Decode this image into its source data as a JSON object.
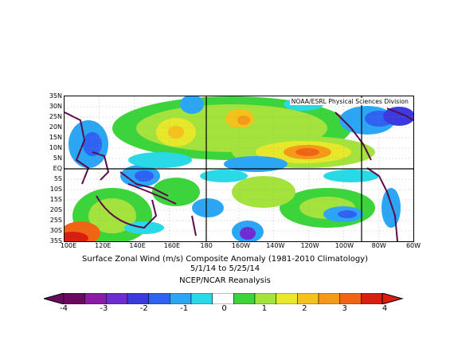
{
  "map": {
    "credit": "NOAA/ESRL Physical Sciences Division",
    "lat_labels": [
      "35N",
      "30N",
      "25N",
      "20N",
      "15N",
      "10N",
      "5N",
      "EQ",
      "5S",
      "10S",
      "15S",
      "20S",
      "25S",
      "30S",
      "35S"
    ],
    "lon_labels": [
      "100E",
      "120E",
      "140E",
      "160E",
      "180",
      "160W",
      "140W",
      "120W",
      "100W",
      "80W",
      "60W"
    ],
    "palette": [
      "#6a0a5f",
      "#8a1ba5",
      "#6d2cd1",
      "#3a3ae0",
      "#2e62f2",
      "#2aa6f5",
      "#28d9e8",
      "#ffffff",
      "#3bd43b",
      "#a4e23c",
      "#e8e82a",
      "#f5c21b",
      "#f59a16",
      "#f06414",
      "#d81e10"
    ],
    "land_color": "#5a0a4a"
  },
  "caption": {
    "line1": "Surface Zonal Wind (m/s) Composite Anomaly (1981-2010 Climatology)",
    "line2": "5/1/14  to 5/25/14",
    "line3": "NCEP/NCAR Reanalysis"
  },
  "colorbar": {
    "tick_labels": [
      "-4",
      "-3",
      "-2",
      "-1",
      "0",
      "1",
      "2",
      "3",
      "4"
    ]
  }
}
